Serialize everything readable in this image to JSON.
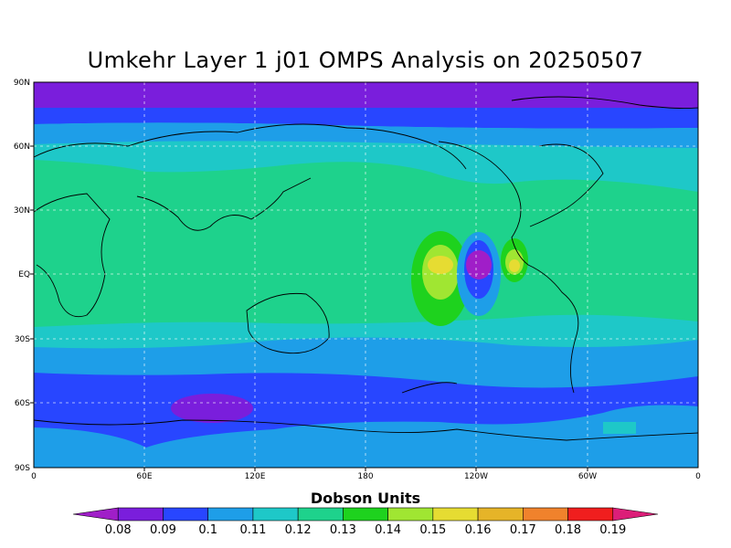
{
  "title": "Umkehr Layer 1 j01 OMPS Analysis on 20250507",
  "map": {
    "lat_ticks": [
      "90N",
      "60N",
      "30N",
      "EQ",
      "30S",
      "60S",
      "90S"
    ],
    "lon_ticks": [
      "0",
      "60E",
      "120E",
      "180",
      "120W",
      "60W",
      "0"
    ]
  },
  "colorbar": {
    "title": "Dobson Units",
    "levels": [
      "0.08",
      "0.09",
      "0.1",
      "0.11",
      "0.12",
      "0.13",
      "0.14",
      "0.15",
      "0.16",
      "0.17",
      "0.18",
      "0.19"
    ],
    "colors": [
      "#a01ec8",
      "#7a1edc",
      "#2846ff",
      "#1e9ee8",
      "#1ec8c8",
      "#1ed28c",
      "#1ed21e",
      "#a0e632",
      "#e6dc32",
      "#e6b428",
      "#f0822c",
      "#f01e1e",
      "#dc1e78"
    ]
  },
  "colors": {
    "ocean_band_0": "#7a1edc",
    "ocean_band_1": "#2846ff",
    "ocean_band_2": "#1e9ee8",
    "ocean_band_3": "#1ec8c8",
    "ocean_band_4": "#1ed28c",
    "coast": "#000000"
  }
}
